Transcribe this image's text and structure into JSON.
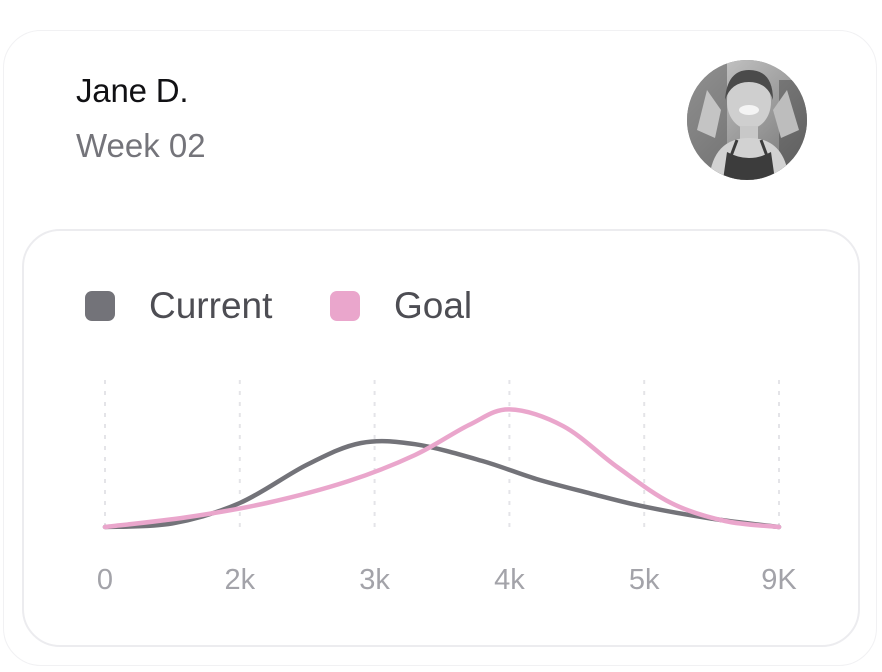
{
  "profile": {
    "name": "Jane D.",
    "subtitle": "Week 02",
    "avatar_icon": "person-avatar-photo"
  },
  "colors": {
    "current": "#737379",
    "goal": "#eaa6cc",
    "grid": "#e4e4e8",
    "tick_text": "#a3a3a9"
  },
  "chart_data": {
    "type": "line",
    "title": "",
    "xlabel": "",
    "ylabel": "",
    "grid": "vertical dashed lines at each x tick",
    "legend_position": "top-left",
    "x_ticks": [
      "0",
      "2k",
      "3k",
      "4k",
      "5k",
      "9K"
    ],
    "x_tick_positions": [
      0,
      1,
      2,
      3,
      4,
      5
    ],
    "ylim": [
      0,
      1
    ],
    "series": [
      {
        "name": "Current",
        "x": [
          0,
          0.5,
          1,
          1.5,
          1.9,
          2.3,
          2.8,
          3.2,
          3.6,
          4,
          4.5,
          5
        ],
        "y": [
          0,
          0.03,
          0.2,
          0.52,
          0.7,
          0.69,
          0.55,
          0.4,
          0.28,
          0.17,
          0.07,
          0
        ]
      },
      {
        "name": "Goal",
        "x": [
          0,
          0.6,
          1.2,
          1.8,
          2.3,
          2.7,
          3,
          3.4,
          3.8,
          4.2,
          4.6,
          5
        ],
        "y": [
          0,
          0.08,
          0.2,
          0.38,
          0.6,
          0.85,
          0.98,
          0.84,
          0.5,
          0.2,
          0.05,
          0
        ]
      }
    ]
  }
}
